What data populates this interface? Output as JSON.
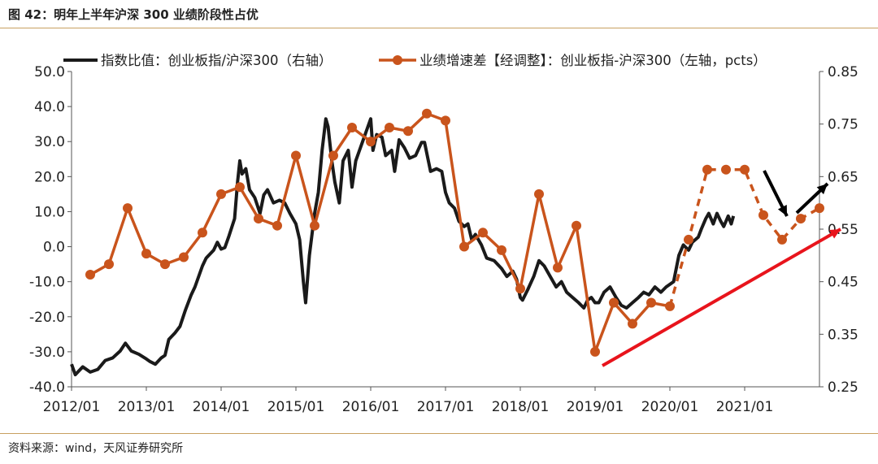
{
  "header": {
    "figure_title": "图 42：明年上半年沪深 300 业绩阶段性占优"
  },
  "footer": {
    "source": "资料来源：wind，天风证券研究所"
  },
  "colors": {
    "ratio_line": "#1a1a1a",
    "growth_line": "#c9541c",
    "trend_arrow": "#e8141c",
    "short_arrow": "#000000",
    "rule": "#c8a060"
  },
  "chart_data": {
    "type": "line",
    "title": "",
    "legend_placement": "top",
    "grid": false,
    "x_axis": {
      "range": [
        "2012/01",
        "2022/01"
      ],
      "tick_labels": [
        "2012/01",
        "2013/01",
        "2014/01",
        "2015/01",
        "2016/01",
        "2017/01",
        "2018/01",
        "2019/01",
        "2020/01",
        "2021/01"
      ]
    },
    "y_left": {
      "range": [
        -40,
        50
      ],
      "tick_labels": [
        "50.0",
        "40.0",
        "30.0",
        "20.0",
        "10.0",
        "0.0",
        "-10.0",
        "-20.0",
        "-30.0",
        "-40.0"
      ]
    },
    "y_right": {
      "range": [
        0.25,
        0.85
      ],
      "tick_labels": [
        "0.85",
        "0.75",
        "0.65",
        "0.55",
        "0.45",
        "0.35",
        "0.25"
      ]
    },
    "series": [
      {
        "name": "指数比值：创业板指/沪深300（右轴）",
        "axis": "right",
        "style": "solid",
        "points": [
          [
            2012.0,
            0.293
          ],
          [
            2012.05,
            0.273
          ],
          [
            2012.15,
            0.288
          ],
          [
            2012.25,
            0.278
          ],
          [
            2012.35,
            0.283
          ],
          [
            2012.45,
            0.3
          ],
          [
            2012.55,
            0.305
          ],
          [
            2012.65,
            0.318
          ],
          [
            2012.72,
            0.333
          ],
          [
            2012.8,
            0.318
          ],
          [
            2012.9,
            0.312
          ],
          [
            2013.0,
            0.303
          ],
          [
            2013.05,
            0.298
          ],
          [
            2013.12,
            0.293
          ],
          [
            2013.2,
            0.305
          ],
          [
            2013.25,
            0.31
          ],
          [
            2013.3,
            0.34
          ],
          [
            2013.38,
            0.352
          ],
          [
            2013.45,
            0.365
          ],
          [
            2013.52,
            0.395
          ],
          [
            2013.6,
            0.425
          ],
          [
            2013.65,
            0.44
          ],
          [
            2013.75,
            0.48
          ],
          [
            2013.8,
            0.495
          ],
          [
            2013.9,
            0.51
          ],
          [
            2013.95,
            0.525
          ],
          [
            2014.0,
            0.512
          ],
          [
            2014.05,
            0.515
          ],
          [
            2014.1,
            0.535
          ],
          [
            2014.18,
            0.57
          ],
          [
            2014.22,
            0.64
          ],
          [
            2014.25,
            0.68
          ],
          [
            2014.28,
            0.655
          ],
          [
            2014.33,
            0.665
          ],
          [
            2014.38,
            0.625
          ],
          [
            2014.45,
            0.61
          ],
          [
            2014.52,
            0.58
          ],
          [
            2014.57,
            0.615
          ],
          [
            2014.62,
            0.625
          ],
          [
            2014.7,
            0.6
          ],
          [
            2014.78,
            0.605
          ],
          [
            2014.85,
            0.6
          ],
          [
            2014.92,
            0.58
          ],
          [
            2015.0,
            0.56
          ],
          [
            2015.05,
            0.53
          ],
          [
            2015.1,
            0.45
          ],
          [
            2015.13,
            0.41
          ],
          [
            2015.18,
            0.5
          ],
          [
            2015.25,
            0.58
          ],
          [
            2015.3,
            0.62
          ],
          [
            2015.35,
            0.7
          ],
          [
            2015.4,
            0.76
          ],
          [
            2015.43,
            0.745
          ],
          [
            2015.48,
            0.68
          ],
          [
            2015.52,
            0.64
          ],
          [
            2015.58,
            0.6
          ],
          [
            2015.63,
            0.68
          ],
          [
            2015.7,
            0.7
          ],
          [
            2015.75,
            0.63
          ],
          [
            2015.8,
            0.68
          ],
          [
            2015.85,
            0.7
          ],
          [
            2015.9,
            0.72
          ],
          [
            2015.95,
            0.74
          ],
          [
            2016.0,
            0.76
          ],
          [
            2016.03,
            0.7
          ],
          [
            2016.08,
            0.73
          ],
          [
            2016.15,
            0.725
          ],
          [
            2016.2,
            0.69
          ],
          [
            2016.28,
            0.7
          ],
          [
            2016.32,
            0.66
          ],
          [
            2016.38,
            0.72
          ],
          [
            2016.45,
            0.705
          ],
          [
            2016.52,
            0.685
          ],
          [
            2016.6,
            0.69
          ],
          [
            2016.68,
            0.715
          ],
          [
            2016.72,
            0.715
          ],
          [
            2016.8,
            0.66
          ],
          [
            2016.88,
            0.665
          ],
          [
            2016.95,
            0.66
          ],
          [
            2017.0,
            0.62
          ],
          [
            2017.05,
            0.6
          ],
          [
            2017.12,
            0.59
          ],
          [
            2017.18,
            0.565
          ],
          [
            2017.25,
            0.555
          ],
          [
            2017.3,
            0.56
          ],
          [
            2017.35,
            0.53
          ],
          [
            2017.4,
            0.54
          ],
          [
            2017.48,
            0.52
          ],
          [
            2017.55,
            0.495
          ],
          [
            2017.65,
            0.49
          ],
          [
            2017.75,
            0.475
          ],
          [
            2017.82,
            0.46
          ],
          [
            2017.9,
            0.47
          ],
          [
            2017.95,
            0.455
          ],
          [
            2018.0,
            0.42
          ],
          [
            2018.03,
            0.415
          ],
          [
            2018.1,
            0.435
          ],
          [
            2018.18,
            0.46
          ],
          [
            2018.25,
            0.49
          ],
          [
            2018.32,
            0.48
          ],
          [
            2018.4,
            0.46
          ],
          [
            2018.48,
            0.44
          ],
          [
            2018.55,
            0.45
          ],
          [
            2018.62,
            0.43
          ],
          [
            2018.7,
            0.42
          ],
          [
            2018.78,
            0.41
          ],
          [
            2018.85,
            0.4
          ],
          [
            2018.9,
            0.415
          ],
          [
            2018.95,
            0.42
          ],
          [
            2019.0,
            0.41
          ],
          [
            2019.05,
            0.41
          ],
          [
            2019.12,
            0.43
          ],
          [
            2019.2,
            0.44
          ],
          [
            2019.28,
            0.42
          ],
          [
            2019.35,
            0.405
          ],
          [
            2019.42,
            0.4
          ],
          [
            2019.5,
            0.41
          ],
          [
            2019.58,
            0.42
          ],
          [
            2019.65,
            0.43
          ],
          [
            2019.72,
            0.425
          ],
          [
            2019.8,
            0.44
          ],
          [
            2019.88,
            0.43
          ],
          [
            2019.95,
            0.44
          ],
          [
            2020.0,
            0.445
          ],
          [
            2020.05,
            0.45
          ],
          [
            2020.12,
            0.5
          ],
          [
            2020.18,
            0.52
          ],
          [
            2020.25,
            0.51
          ],
          [
            2020.3,
            0.525
          ],
          [
            2020.38,
            0.535
          ],
          [
            2020.42,
            0.55
          ],
          [
            2020.48,
            0.57
          ],
          [
            2020.52,
            0.58
          ],
          [
            2020.58,
            0.56
          ],
          [
            2020.63,
            0.58
          ],
          [
            2020.68,
            0.565
          ],
          [
            2020.72,
            0.555
          ],
          [
            2020.78,
            0.575
          ],
          [
            2020.82,
            0.56
          ],
          [
            2020.85,
            0.575
          ]
        ]
      },
      {
        "name": "业绩增速差【经调整】：创业板指-沪深300（左轴，pcts）",
        "axis": "left",
        "style": "solid-then-dashed",
        "dashed_from_index": 31,
        "points": [
          [
            2012.25,
            -8.0
          ],
          [
            2012.5,
            -5.0
          ],
          [
            2012.75,
            11.0
          ],
          [
            2013.0,
            -2.0
          ],
          [
            2013.25,
            -5.0
          ],
          [
            2013.5,
            -3.0
          ],
          [
            2013.75,
            4.0
          ],
          [
            2014.0,
            15.0
          ],
          [
            2014.25,
            17.0
          ],
          [
            2014.5,
            8.0
          ],
          [
            2014.75,
            6.0
          ],
          [
            2015.0,
            26.0
          ],
          [
            2015.25,
            6.0
          ],
          [
            2015.5,
            26.0
          ],
          [
            2015.75,
            34.0
          ],
          [
            2016.0,
            30.0
          ],
          [
            2016.25,
            34.0
          ],
          [
            2016.5,
            33.0
          ],
          [
            2016.75,
            38.0
          ],
          [
            2017.0,
            36.0
          ],
          [
            2017.25,
            0.0
          ],
          [
            2017.5,
            4.0
          ],
          [
            2017.75,
            -1.0
          ],
          [
            2018.0,
            -12.0
          ],
          [
            2018.25,
            15.0
          ],
          [
            2018.5,
            -6.0
          ],
          [
            2018.75,
            6.0
          ],
          [
            2019.0,
            -30.0
          ],
          [
            2019.25,
            -16.0
          ],
          [
            2019.5,
            -22.0
          ],
          [
            2019.75,
            -16.0
          ],
          [
            2020.0,
            -17.0
          ],
          [
            2020.25,
            2.0
          ],
          [
            2020.5,
            22.0
          ],
          [
            2020.75,
            22.0
          ],
          [
            2021.0,
            22.0
          ],
          [
            2021.25,
            9.0
          ],
          [
            2021.5,
            2.0
          ],
          [
            2021.75,
            8.0
          ],
          [
            2022.0,
            11.0
          ]
        ]
      }
    ]
  }
}
